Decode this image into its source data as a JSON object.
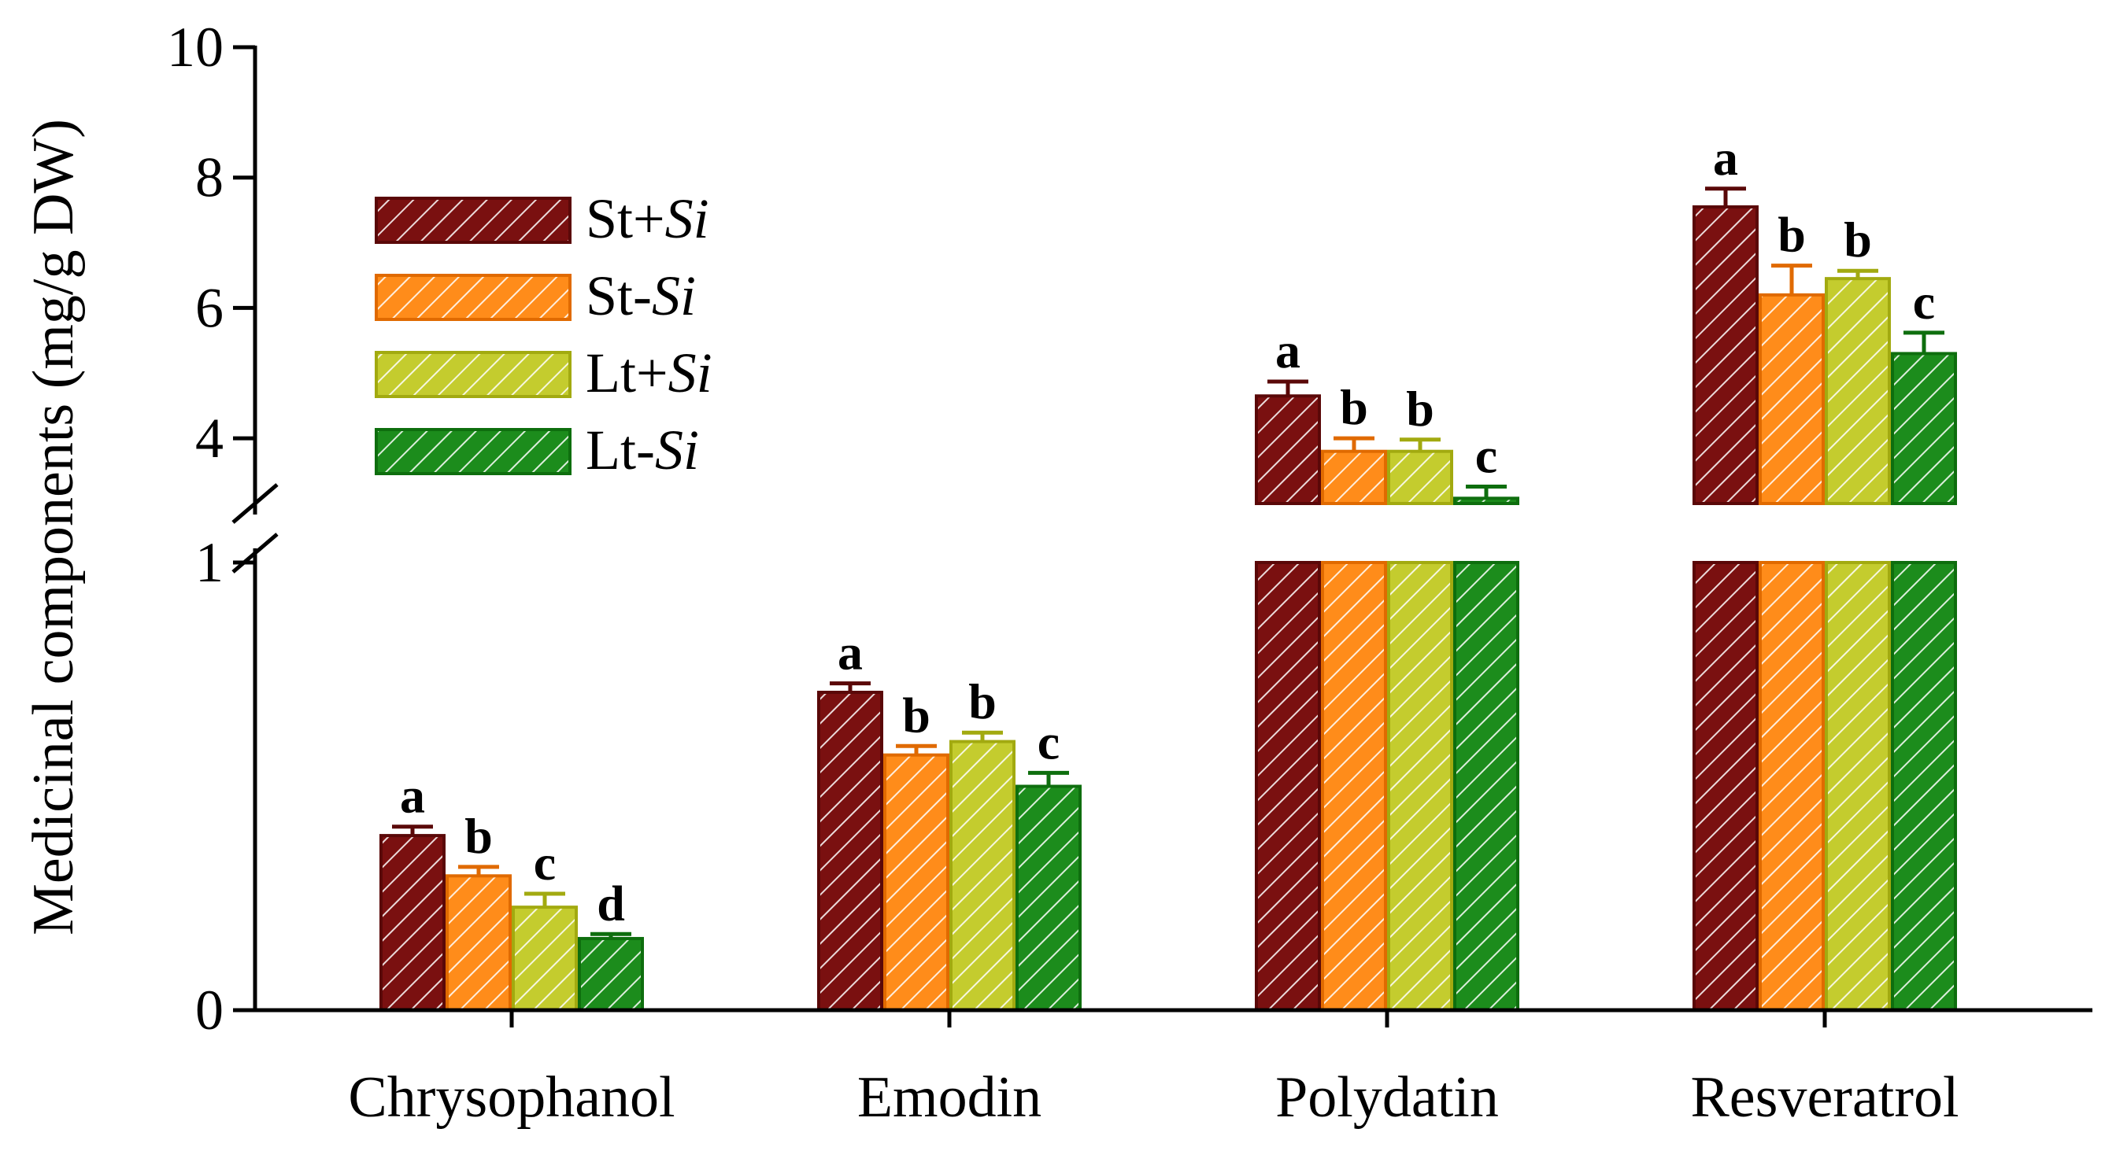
{
  "chart_data": {
    "type": "bar",
    "title": "",
    "xlabel": "",
    "ylabel": "Medicinal components (mg/g DW)",
    "broken_axis": {
      "lower_range": [
        0,
        1
      ],
      "upper_range": [
        3,
        10
      ],
      "lower_ticks": [
        "0",
        "1"
      ],
      "upper_ticks": [
        "4",
        "6",
        "8",
        "10"
      ]
    },
    "categories": [
      "Chrysophanol",
      "Emodin",
      "Polydatin",
      "Resveratrol"
    ],
    "series": [
      {
        "name_prefix": "St",
        "name_sign": "+",
        "name_suffix": "Si",
        "color": "#7a1010",
        "edge": "#5a0808",
        "values": [
          0.39,
          0.71,
          4.65,
          7.55
        ],
        "errors": [
          0.02,
          0.02,
          0.22,
          0.28
        ],
        "letters": [
          "a",
          "a",
          "a",
          "a"
        ]
      },
      {
        "name_prefix": "St",
        "name_sign": "-",
        "name_suffix": "Si",
        "color": "#ff8c1a",
        "edge": "#e06a00",
        "values": [
          0.3,
          0.57,
          3.8,
          6.2
        ],
        "errors": [
          0.02,
          0.02,
          0.2,
          0.45
        ],
        "letters": [
          "b",
          "b",
          "b",
          "b"
        ]
      },
      {
        "name_prefix": "Lt",
        "name_sign": "+",
        "name_suffix": "Si",
        "color": "#c4cc2e",
        "edge": "#a2aa10",
        "values": [
          0.23,
          0.6,
          3.8,
          6.45
        ],
        "errors": [
          0.03,
          0.02,
          0.18,
          0.12
        ],
        "letters": [
          "c",
          "b",
          "b",
          "b"
        ]
      },
      {
        "name_prefix": "Lt",
        "name_sign": "-",
        "name_suffix": "Si",
        "color": "#1c8c1c",
        "edge": "#0e6e0e",
        "values": [
          0.16,
          0.5,
          3.08,
          5.3
        ],
        "errors": [
          0.01,
          0.03,
          0.18,
          0.32
        ],
        "letters": [
          "d",
          "c",
          "c",
          "c"
        ]
      }
    ],
    "legend_position": "upper-left"
  }
}
